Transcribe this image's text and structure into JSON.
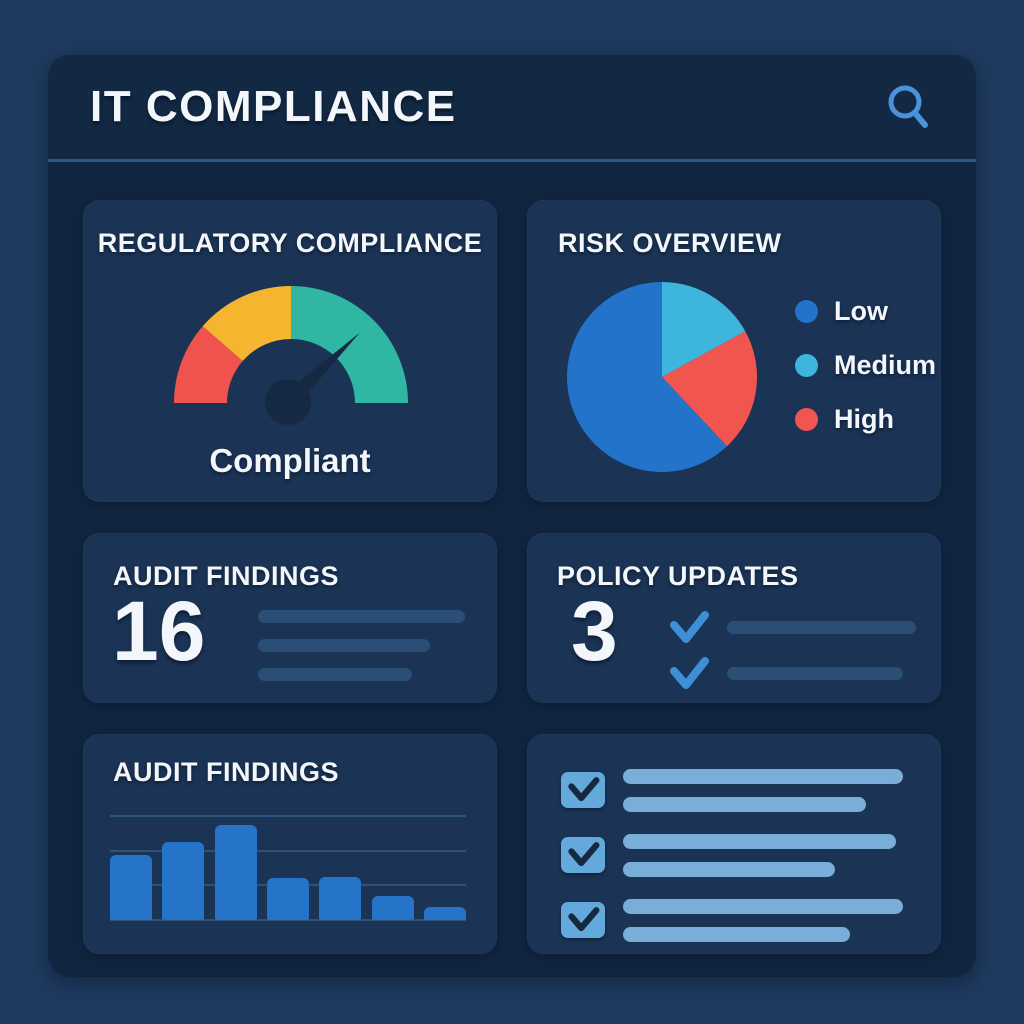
{
  "header": {
    "title": "IT COMPLIANCE"
  },
  "icons": {
    "search": "magnifier"
  },
  "cards": {
    "regulatory_compliance": {
      "title": "REGULATORY COMPLIANCE",
      "status": "Compliant"
    },
    "risk_overview": {
      "title": "RISK OVERVIEW"
    },
    "audit_findings_summary": {
      "title": "AUDIT FINDINGS",
      "count": "16"
    },
    "policy_updates": {
      "title": "POLICY UPDATES",
      "count": "3"
    },
    "audit_findings_chart": {
      "title": "AUDIT FINDINGS"
    }
  },
  "colors": {
    "page_bg": "#1e3a5e",
    "panel_bg": "#112540",
    "header_bg": "#122843",
    "card_bg": "#1b3354",
    "divider": "#2a5a88",
    "text": "#f3f6fa",
    "accent_blue": "#2574c9",
    "light_blue": "#79aed9",
    "checkbox_fill": "#63a9dc",
    "check_blue": "#3f8fd6",
    "skeleton_dark": "#2b4e76",
    "search_icon": "#4a93dc",
    "gauge_red": "#f0534e",
    "gauge_yellow": "#f4b62f",
    "gauge_teal": "#2fb7a3",
    "needle": "#152a42",
    "pie_blue": "#2273c9",
    "pie_cyan": "#3db5dc",
    "pie_red": "#f0564f"
  },
  "chart_data": [
    {
      "type": "gauge",
      "card": "regulatory_compliance",
      "title": "REGULATORY COMPLIANCE",
      "status_label": "Compliant",
      "segments": [
        {
          "name": "non-compliant",
          "color": "#f0534e",
          "from_deg": 180,
          "to_deg": 139
        },
        {
          "name": "partially-compliant",
          "color": "#f4b62f",
          "from_deg": 139,
          "to_deg": 90
        },
        {
          "name": "compliant",
          "color": "#2fb7a3",
          "from_deg": 90,
          "to_deg": 0
        }
      ],
      "needle_deg": 44,
      "needle_color": "#152a42"
    },
    {
      "type": "pie",
      "card": "risk_overview",
      "title": "RISK OVERVIEW",
      "slices": [
        {
          "label": "Low",
          "value": 62,
          "color": "#2273c9"
        },
        {
          "label": "Medium",
          "value": 17,
          "color": "#3db5dc"
        },
        {
          "label": "High",
          "value": 21,
          "color": "#f0564f"
        }
      ],
      "start": "top",
      "clockwise_order": [
        "Medium",
        "High",
        "Low"
      ],
      "legend_position": "right"
    },
    {
      "type": "bar",
      "card": "audit_findings_chart",
      "title": "AUDIT FINDINGS",
      "categories": [
        "",
        "",
        "",
        "",
        "",
        "",
        ""
      ],
      "values": [
        64,
        77,
        94,
        42,
        43,
        24,
        13
      ],
      "ylim": [
        0,
        103
      ],
      "gridlines": 4,
      "bar_color": "#2574c9"
    }
  ]
}
